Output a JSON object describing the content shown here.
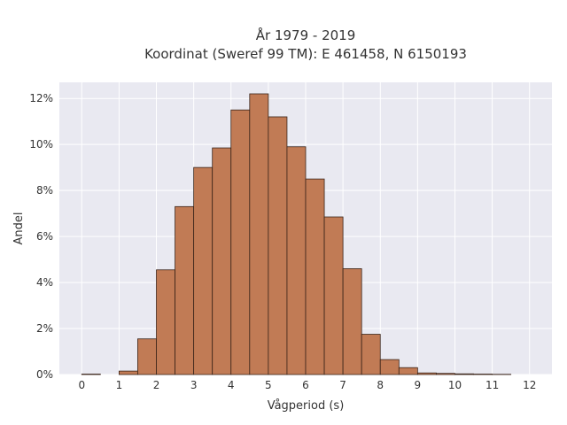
{
  "chart_data": {
    "type": "bar",
    "title_line1": "År 1979 - 2019",
    "title_line2": "Koordinat (Sweref 99 TM): E 461458, N 6150193",
    "xlabel": "Vågperiod (s)",
    "ylabel": "Andel",
    "xlim": [
      -0.6,
      12.6
    ],
    "ylim": [
      0,
      12.7
    ],
    "x_ticks": [
      0,
      1,
      2,
      3,
      4,
      5,
      6,
      7,
      8,
      9,
      10,
      11,
      12
    ],
    "x_tick_labels": [
      "0",
      "1",
      "2",
      "3",
      "4",
      "5",
      "6",
      "7",
      "8",
      "9",
      "10",
      "11",
      "12"
    ],
    "y_ticks": [
      0,
      2,
      4,
      6,
      8,
      10,
      12
    ],
    "y_tick_labels": [
      "0%",
      "2%",
      "4%",
      "6%",
      "8%",
      "10%",
      "12%"
    ],
    "bin_width": 0.5,
    "bin_starts": [
      0,
      0.5,
      1,
      1.5,
      2,
      2.5,
      3,
      3.5,
      4,
      4.5,
      5,
      5.5,
      6,
      6.5,
      7,
      7.5,
      8,
      8.5,
      9,
      9.5,
      10,
      10.5,
      11,
      11.5
    ],
    "values": [
      0.02,
      0,
      0.15,
      1.55,
      4.55,
      7.3,
      9.0,
      9.85,
      11.5,
      12.2,
      11.2,
      9.9,
      8.5,
      6.85,
      4.6,
      1.75,
      0.65,
      0.3,
      0.07,
      0.05,
      0.03,
      0.02,
      0.01,
      0
    ],
    "grid": true,
    "colors": {
      "bar_fill": "#c17b55",
      "bar_edge": "#3a2419",
      "plot_background": "#e9e9f1",
      "grid": "#ffffff"
    }
  }
}
